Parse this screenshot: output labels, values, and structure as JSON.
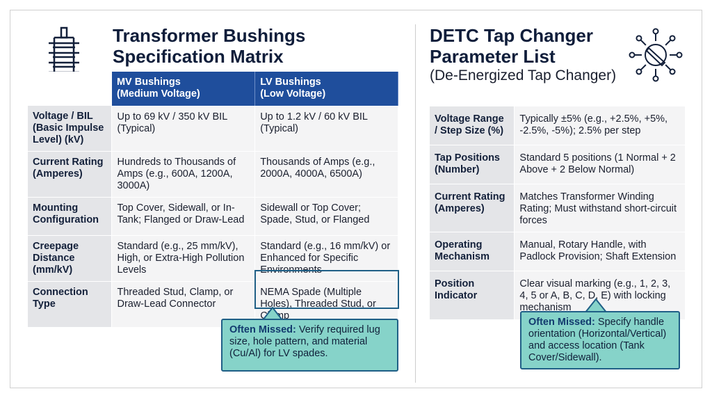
{
  "left": {
    "title_line1": "Transformer Bushings",
    "title_line2": "Specification Matrix",
    "headers": [
      "MV Bushings\n(Medium Voltage)",
      "LV Bushings\n(Low Voltage)"
    ],
    "headers_split": [
      [
        "MV Bushings",
        "(Medium Voltage)"
      ],
      [
        "LV Bushings",
        "(Low Voltage)"
      ]
    ],
    "rows": [
      {
        "label": "Voltage / BIL (Basic Impulse Level) (kV)",
        "mv": "Up to 69 kV / 350 kV BIL (Typical)",
        "lv": "Up to 1.2 kV / 60 kV BIL (Typical)"
      },
      {
        "label": "Current Rating (Amperes)",
        "mv": "Hundreds to Thousands of Amps (e.g., 600A, 1200A, 3000A)",
        "lv": "Thousands of Amps (e.g., 2000A, 4000A, 6500A)"
      },
      {
        "label": "Mounting Configuration",
        "mv": "Top Cover, Sidewall, or In-Tank; Flanged or Draw-Lead",
        "lv": "Sidewall or Top Cover; Spade, Stud, or Flanged"
      },
      {
        "label": "Creepage Distance (mm/kV)",
        "mv": "Standard (e.g., 25 mm/kV), High, or Extra-High Pollution Levels",
        "lv": "Standard (e.g., 16 mm/kV) or Enhanced for Specific Environments"
      },
      {
        "label": "Connection Type",
        "mv": "Threaded Stud, Clamp, or Draw-Lead Connector",
        "lv": "NEMA Spade (Multiple Holes), Threaded Stud, or Clamp"
      }
    ],
    "callout_title": "Often Missed:",
    "callout_text": " Verify required lug size, hole pattern, and material (Cu/Al) for LV spades."
  },
  "right": {
    "title_line1": "DETC Tap Changer",
    "title_line2": "Parameter List",
    "subtitle": "(De-Energized Tap Changer)",
    "rows": [
      {
        "label": "Voltage Range / Step Size (%)",
        "value": "Typically ±5% (e.g., +2.5%, +5%, -2.5%, -5%); 2.5% per step"
      },
      {
        "label": "Tap Positions (Number)",
        "value": "Standard 5 positions (1 Normal + 2 Above + 2 Below Normal)"
      },
      {
        "label": "Current Rating (Amperes)",
        "value": "Matches Transformer Winding Rating; Must withstand short-circuit forces"
      },
      {
        "label": "Operating Mechanism",
        "value": "Manual, Rotary Handle, with Padlock Provision; Shaft Extension"
      },
      {
        "label": "Position Indicator",
        "value": "Clear visual marking (e.g., 1, 2, 3, 4, 5 or A, B, C, D, E) with locking mechanism"
      }
    ],
    "callout_title": "Often Missed:",
    "callout_text": " Specify handle orientation (Horizontal/Vertical) and access location (Tank Cover/Sidewall)."
  },
  "icons": [
    "bushing-icon",
    "tap-changer-dial-icon"
  ],
  "colors": {
    "header": "#1f4e9c",
    "callout": "#86d3c9",
    "callout_border": "#1f5f86"
  }
}
